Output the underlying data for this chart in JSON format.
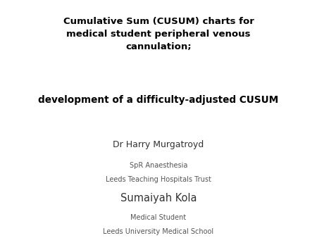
{
  "background_color": "#ffffff",
  "title_line1": "Cumulative Sum (CUSUM) charts for",
  "title_line2": "medical student peripheral venous",
  "title_line3": "cannulation;",
  "subtitle": "development of a difficulty-adjusted CUSUM",
  "author_name": "Dr Harry Murgatroyd",
  "author_role": "SpR Anaesthesia",
  "author_affiliation": "Leeds Teaching Hospitals Trust",
  "author2_name": "Sumaiyah Kola",
  "author2_role": "Medical Student",
  "author2_affiliation": "Leeds University Medical School",
  "title_fontsize": 9.5,
  "subtitle_fontsize": 9.8,
  "author_name_fontsize": 9.0,
  "author_detail_fontsize": 7.0,
  "author2_name_fontsize": 10.5,
  "title_color": "#000000",
  "subtitle_color": "#000000",
  "author_name_color": "#333333",
  "author_detail_color": "#555555",
  "author2_name_color": "#333333"
}
